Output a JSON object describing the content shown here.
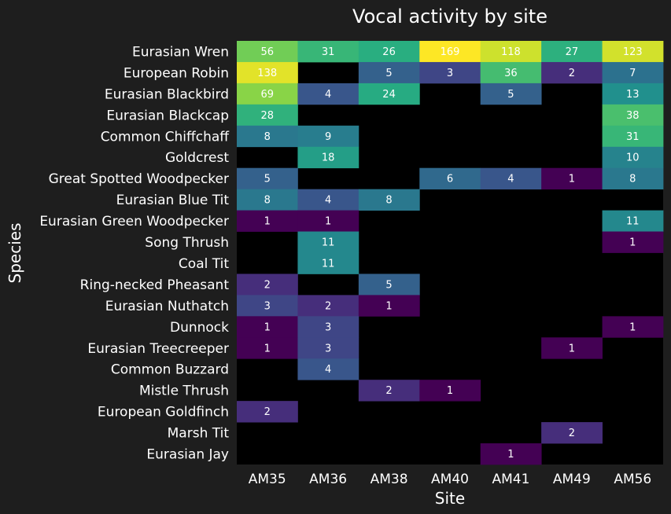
{
  "chart_data": {
    "type": "heatmap",
    "title": "Vocal activity by site",
    "xlabel": "Site",
    "ylabel": "Species",
    "colormap": "viridis",
    "x": [
      "AM35",
      "AM36",
      "AM38",
      "AM40",
      "AM41",
      "AM49",
      "AM56"
    ],
    "y": [
      "Eurasian Wren",
      "European Robin",
      "Eurasian Blackbird",
      "Eurasian Blackcap",
      "Common Chiffchaff",
      "Goldcrest",
      "Great Spotted Woodpecker",
      "Eurasian Blue Tit",
      "Eurasian Green Woodpecker",
      "Song Thrush",
      "Coal Tit",
      "Ring-necked Pheasant",
      "Eurasian Nuthatch",
      "Dunnock",
      "Eurasian Treecreeper",
      "Common Buzzard",
      "Mistle Thrush",
      "European Goldfinch",
      "Marsh Tit",
      "Eurasian Jay"
    ],
    "values": [
      [
        56,
        31,
        26,
        169,
        118,
        27,
        123
      ],
      [
        138,
        null,
        5,
        3,
        36,
        2,
        7
      ],
      [
        69,
        4,
        24,
        null,
        5,
        null,
        13
      ],
      [
        28,
        null,
        null,
        null,
        null,
        null,
        38
      ],
      [
        8,
        9,
        null,
        null,
        null,
        null,
        31
      ],
      [
        null,
        18,
        null,
        null,
        null,
        null,
        10
      ],
      [
        5,
        null,
        null,
        6,
        4,
        1,
        8
      ],
      [
        8,
        4,
        8,
        null,
        null,
        null,
        null
      ],
      [
        1,
        1,
        null,
        null,
        null,
        null,
        11
      ],
      [
        null,
        11,
        null,
        null,
        null,
        null,
        1
      ],
      [
        null,
        11,
        null,
        null,
        null,
        null,
        null
      ],
      [
        2,
        null,
        5,
        null,
        null,
        null,
        null
      ],
      [
        3,
        2,
        1,
        null,
        null,
        null,
        null
      ],
      [
        1,
        3,
        null,
        null,
        null,
        null,
        1
      ],
      [
        1,
        3,
        null,
        null,
        null,
        1,
        null
      ],
      [
        null,
        4,
        null,
        null,
        null,
        null,
        null
      ],
      [
        null,
        null,
        2,
        1,
        null,
        null,
        null
      ],
      [
        2,
        null,
        null,
        null,
        null,
        null,
        null
      ],
      [
        null,
        null,
        null,
        null,
        null,
        2,
        null
      ],
      [
        null,
        null,
        null,
        null,
        1,
        null,
        null
      ]
    ],
    "empty_cell_color": "#000000",
    "background_color": "#1e1e1e",
    "text_color": "#ffffff"
  }
}
